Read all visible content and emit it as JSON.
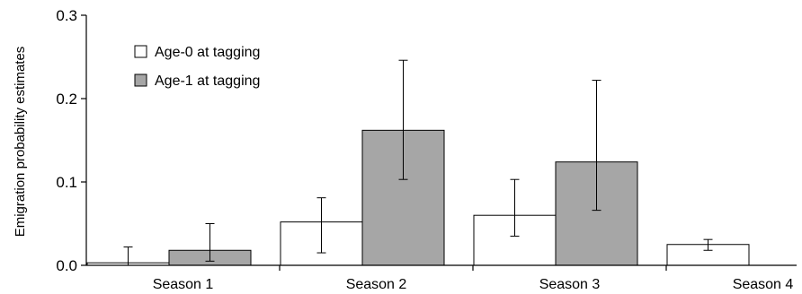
{
  "chart_data": {
    "type": "bar",
    "title": "",
    "xlabel": "",
    "ylabel": "Emigration probability estimates",
    "ylim": [
      0,
      0.3
    ],
    "yticks": [
      "0.0",
      "0.1",
      "0.2",
      "0.3"
    ],
    "ytick_values": [
      0,
      0.1,
      0.2,
      0.3
    ],
    "categories": [
      "Season 1",
      "Season 2",
      "Season 3",
      "Season 4"
    ],
    "legend_position": "top-left",
    "grid": false,
    "series": [
      {
        "name": "Age-0 at tagging",
        "color": "#ffffff",
        "values": [
          0.003,
          0.052,
          0.06,
          0.025
        ],
        "error_low": [
          0.0,
          0.015,
          0.035,
          0.018
        ],
        "error_high": [
          0.022,
          0.081,
          0.103,
          0.031
        ]
      },
      {
        "name": "Age-1 at tagging",
        "color": "#a6a6a6",
        "values": [
          0.018,
          0.162,
          0.124,
          null
        ],
        "error_low": [
          0.005,
          0.103,
          0.066,
          null
        ],
        "error_high": [
          0.05,
          0.246,
          0.222,
          null
        ]
      }
    ]
  }
}
